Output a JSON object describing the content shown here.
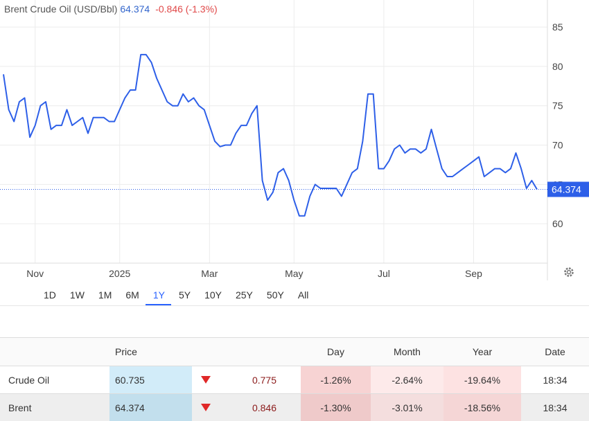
{
  "chart_data": {
    "type": "line",
    "title": "Brent Crude Oil (USD/Bbl)",
    "change": "-0.846 (-1.3%)",
    "categories": [
      null,
      null,
      null,
      null,
      null,
      null,
      "Nov",
      null,
      null,
      null,
      null,
      null,
      null,
      null,
      null,
      null,
      null,
      null,
      null,
      null,
      null,
      null,
      "2025",
      null,
      null,
      null,
      null,
      null,
      null,
      null,
      null,
      null,
      null,
      null,
      null,
      null,
      null,
      null,
      null,
      "Mar",
      null,
      null,
      null,
      null,
      null,
      null,
      null,
      null,
      null,
      null,
      null,
      null,
      null,
      null,
      null,
      "May",
      null,
      null,
      null,
      null,
      null,
      null,
      null,
      null,
      null,
      null,
      null,
      null,
      null,
      null,
      null,
      null,
      "Jul",
      null,
      null,
      null,
      null,
      null,
      null,
      null,
      null,
      null,
      null,
      null,
      null,
      null,
      null,
      null,
      null,
      "Sep",
      null,
      null,
      null,
      null,
      null,
      null,
      null,
      null,
      null,
      null,
      null,
      null
    ],
    "series": [
      {
        "name": "Brent",
        "color": "#2d5fe8",
        "values": [
          79,
          74.5,
          73,
          75.5,
          76,
          71,
          72.5,
          75,
          75.5,
          72,
          72.5,
          72.5,
          74.5,
          72.5,
          73,
          73.5,
          71.5,
          73.5,
          73.5,
          73.5,
          73,
          73,
          74.5,
          76,
          77,
          77,
          81.5,
          81.5,
          80.5,
          78.5,
          77,
          75.5,
          75,
          75,
          76.5,
          75.5,
          76,
          75,
          74.5,
          72.5,
          70.5,
          69.8,
          70,
          70,
          71.5,
          72.5,
          72.5,
          74,
          75,
          65.5,
          63,
          64,
          66.5,
          67,
          65.5,
          63,
          61,
          61,
          63.5,
          65,
          64.5,
          64.5,
          64.5,
          64.5,
          63.5,
          65,
          66.5,
          67,
          70.5,
          76.5,
          76.5,
          67,
          67,
          68,
          69.5,
          70,
          69,
          69.5,
          69.5,
          69,
          69.5,
          72,
          69.5,
          67,
          66,
          66,
          66.5,
          67,
          67.5,
          68,
          68.5,
          66,
          66.5,
          67,
          67,
          66.5,
          67,
          69,
          67,
          64.5,
          65.5,
          64.374
        ]
      }
    ],
    "ylim": [
      55,
      88
    ],
    "yticks": [
      60,
      65,
      70,
      75,
      80,
      85
    ],
    "grid": true
  },
  "ranges": {
    "options": [
      "1D",
      "1W",
      "1M",
      "6M",
      "1Y",
      "5Y",
      "10Y",
      "25Y",
      "50Y",
      "All"
    ],
    "selected": 4
  },
  "table": {
    "columns": {
      "price": "Price",
      "day": "Day",
      "month": "Month",
      "year": "Year",
      "date": "Date"
    },
    "rows": [
      [
        "Crude Oil",
        "60.735",
        "0.775",
        "-1.26%",
        "-2.64%",
        "-19.64%",
        "18:34"
      ],
      [
        "Brent",
        "64.374",
        "0.846",
        "-1.30%",
        "-3.01%",
        "-18.56%",
        "18:34"
      ]
    ]
  }
}
